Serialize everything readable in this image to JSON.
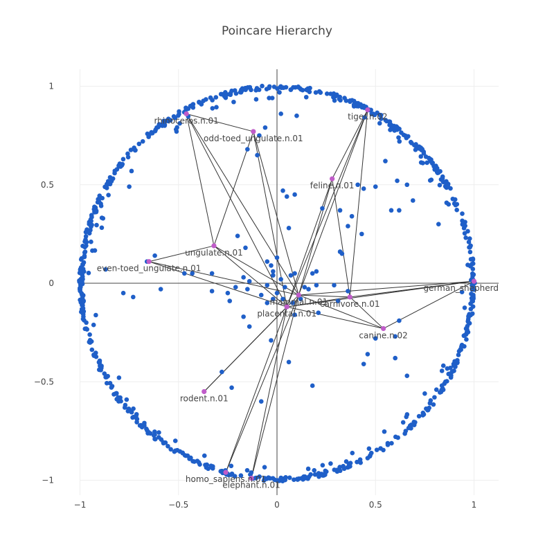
{
  "chart_data": {
    "type": "scatter",
    "title": "Poincare Hierarchy",
    "xlabel": "",
    "ylabel": "",
    "xlim": [
      -1.05,
      1.12
    ],
    "ylim": [
      -1.11,
      1.12
    ],
    "x_ticks": [
      -1,
      -0.5,
      0,
      0.5,
      1
    ],
    "x_tick_labels": [
      "−1",
      "−0.5",
      "0",
      "0.5",
      "1"
    ],
    "y_ticks": [
      -1,
      -0.5,
      0,
      0.5,
      1
    ],
    "y_tick_labels": [
      "−1",
      "−0.5",
      "0",
      "0.5",
      "1"
    ],
    "grid": true,
    "zerolines": true,
    "legend": "none",
    "colors": {
      "points": "#1f5fc8",
      "highlight": "#c05cc9",
      "edges": "#333333",
      "grid": "#eeeeee",
      "zeroline": "#444444"
    },
    "labeled_nodes": [
      {
        "name": "rhinoceros.n.01",
        "x": -0.46,
        "y": 0.86
      },
      {
        "name": "odd-toed_ungulate.n.01",
        "x": -0.12,
        "y": 0.77
      },
      {
        "name": "tiger.n.02",
        "x": 0.46,
        "y": 0.88
      },
      {
        "name": "feline.n.01",
        "x": 0.28,
        "y": 0.53
      },
      {
        "name": "ungulate.n.01",
        "x": -0.32,
        "y": 0.19
      },
      {
        "name": "even-toed_ungulate.n.01",
        "x": -0.65,
        "y": 0.11
      },
      {
        "name": "german_shepherd",
        "x": 1.0,
        "y": 0.01
      },
      {
        "name": "mammal.n.01",
        "x": 0.11,
        "y": -0.06
      },
      {
        "name": "carnivore.n.01",
        "x": 0.37,
        "y": -0.07
      },
      {
        "name": "placental.n.01",
        "x": 0.05,
        "y": -0.12
      },
      {
        "name": "canine.n.02",
        "x": 0.54,
        "y": -0.23
      },
      {
        "name": "rodent.n.01",
        "x": -0.37,
        "y": -0.55
      },
      {
        "name": "homo_sapiens.n.01",
        "x": -0.26,
        "y": -0.96
      },
      {
        "name": "elephant.n.01",
        "x": -0.13,
        "y": -0.99
      }
    ],
    "edges": [
      [
        "rhinoceros.n.01",
        "odd-toed_ungulate.n.01"
      ],
      [
        "rhinoceros.n.01",
        "ungulate.n.01"
      ],
      [
        "rhinoceros.n.01",
        "mammal.n.01"
      ],
      [
        "rhinoceros.n.01",
        "placental.n.01"
      ],
      [
        "odd-toed_ungulate.n.01",
        "ungulate.n.01"
      ],
      [
        "odd-toed_ungulate.n.01",
        "mammal.n.01"
      ],
      [
        "odd-toed_ungulate.n.01",
        "placental.n.01"
      ],
      [
        "even-toed_ungulate.n.01",
        "ungulate.n.01"
      ],
      [
        "even-toed_ungulate.n.01",
        "mammal.n.01"
      ],
      [
        "even-toed_ungulate.n.01",
        "placental.n.01"
      ],
      [
        "ungulate.n.01",
        "mammal.n.01"
      ],
      [
        "ungulate.n.01",
        "placental.n.01"
      ],
      [
        "tiger.n.02",
        "feline.n.01"
      ],
      [
        "tiger.n.02",
        "carnivore.n.01"
      ],
      [
        "tiger.n.02",
        "mammal.n.01"
      ],
      [
        "tiger.n.02",
        "placental.n.01"
      ],
      [
        "feline.n.01",
        "carnivore.n.01"
      ],
      [
        "feline.n.01",
        "mammal.n.01"
      ],
      [
        "feline.n.01",
        "placental.n.01"
      ],
      [
        "carnivore.n.01",
        "mammal.n.01"
      ],
      [
        "carnivore.n.01",
        "placental.n.01"
      ],
      [
        "canine.n.02",
        "carnivore.n.01"
      ],
      [
        "canine.n.02",
        "mammal.n.01"
      ],
      [
        "canine.n.02",
        "placental.n.01"
      ],
      [
        "german_shepherd",
        "canine.n.02"
      ],
      [
        "german_shepherd",
        "carnivore.n.01"
      ],
      [
        "german_shepherd",
        "mammal.n.01"
      ],
      [
        "german_shepherd",
        "placental.n.01"
      ],
      [
        "rodent.n.01",
        "mammal.n.01"
      ],
      [
        "rodent.n.01",
        "placental.n.01"
      ],
      [
        "homo_sapiens.n.01",
        "mammal.n.01"
      ],
      [
        "homo_sapiens.n.01",
        "placental.n.01"
      ],
      [
        "elephant.n.01",
        "mammal.n.01"
      ],
      [
        "elephant.n.01",
        "placental.n.01"
      ]
    ],
    "interior_points": [
      [
        -0.87,
        0.07
      ],
      [
        -0.75,
        0.49
      ],
      [
        -0.62,
        0.14
      ],
      [
        -0.59,
        -0.03
      ],
      [
        -0.73,
        -0.07
      ],
      [
        -0.78,
        -0.05
      ],
      [
        -0.47,
        0.05
      ],
      [
        -0.33,
        -0.04
      ],
      [
        -0.25,
        -0.05
      ],
      [
        -0.21,
        -0.02
      ],
      [
        -0.17,
        0.03
      ],
      [
        -0.15,
        -0.03
      ],
      [
        -0.14,
        0.01
      ],
      [
        -0.24,
        -0.09
      ],
      [
        -0.09,
        0.75
      ],
      [
        -0.1,
        0.65
      ],
      [
        -0.06,
        0.79
      ],
      [
        -0.2,
        0.24
      ],
      [
        -0.16,
        0.18
      ],
      [
        -0.05,
        0.11
      ],
      [
        -0.02,
        0.06
      ],
      [
        0.0,
        0.13
      ],
      [
        0.03,
        0.47
      ],
      [
        0.05,
        0.44
      ],
      [
        0.09,
        0.45
      ],
      [
        0.02,
        0.86
      ],
      [
        0.06,
        0.28
      ],
      [
        -0.02,
        0.04
      ],
      [
        0.02,
        0.02
      ],
      [
        0.04,
        -0.02
      ],
      [
        0.07,
        0.04
      ],
      [
        0.09,
        0.05
      ],
      [
        -0.05,
        -0.01
      ],
      [
        0.0,
        -0.05
      ],
      [
        -0.02,
        -0.08
      ],
      [
        0.03,
        -0.08
      ],
      [
        0.08,
        -0.1
      ],
      [
        0.12,
        -0.08
      ],
      [
        0.14,
        -0.02
      ],
      [
        0.16,
        -0.03
      ],
      [
        0.18,
        0.05
      ],
      [
        0.2,
        -0.01
      ],
      [
        0.2,
        0.06
      ],
      [
        0.23,
        0.38
      ],
      [
        0.21,
        -0.15
      ],
      [
        0.29,
        -0.01
      ],
      [
        0.31,
        -0.09
      ],
      [
        0.32,
        0.37
      ],
      [
        0.32,
        0.16
      ],
      [
        0.33,
        0.15
      ],
      [
        0.36,
        0.29
      ],
      [
        0.38,
        0.34
      ],
      [
        0.41,
        0.5
      ],
      [
        0.43,
        0.25
      ],
      [
        0.44,
        0.48
      ],
      [
        0.5,
        0.49
      ],
      [
        0.55,
        0.62
      ],
      [
        0.61,
        0.52
      ],
      [
        0.58,
        0.37
      ],
      [
        0.62,
        0.37
      ],
      [
        0.69,
        0.42
      ],
      [
        0.66,
        0.5
      ],
      [
        0.74,
        0.61
      ],
      [
        0.82,
        0.3
      ],
      [
        0.5,
        -0.28
      ],
      [
        0.46,
        -0.36
      ],
      [
        0.44,
        -0.41
      ],
      [
        0.6,
        -0.27
      ],
      [
        0.62,
        -0.19
      ],
      [
        0.66,
        -0.47
      ],
      [
        0.75,
        -0.56
      ],
      [
        0.88,
        -0.43
      ],
      [
        0.6,
        -0.38
      ],
      [
        0.36,
        -0.04
      ],
      [
        0.06,
        -0.4
      ],
      [
        -0.03,
        -0.29
      ],
      [
        -0.14,
        -0.22
      ],
      [
        -0.17,
        -0.17
      ],
      [
        -0.08,
        -0.06
      ],
      [
        -0.05,
        -0.1
      ],
      [
        -0.28,
        -0.45
      ],
      [
        0.09,
        -0.16
      ],
      [
        -0.33,
        0.05
      ],
      [
        -0.43,
        0.05
      ],
      [
        -0.66,
        0.11
      ],
      [
        -0.51,
        0.77
      ],
      [
        -0.57,
        0.8
      ],
      [
        -0.37,
        -0.55
      ],
      [
        -0.23,
        -0.53
      ],
      [
        -0.08,
        -0.6
      ],
      [
        0.18,
        -0.52
      ],
      [
        -0.15,
        0.68
      ],
      [
        -0.03,
        0.09
      ],
      [
        0.1,
        0.85
      ],
      [
        -0.22,
        0.92
      ],
      [
        -0.04,
        0.94
      ]
    ]
  }
}
